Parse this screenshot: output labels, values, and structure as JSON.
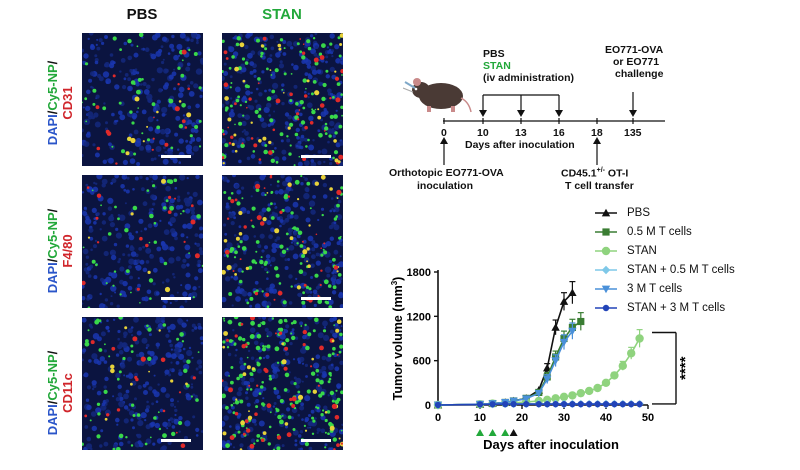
{
  "microscopy": {
    "columns": [
      "PBS",
      "STAN"
    ],
    "column_colors": [
      "#111111",
      "#22a83a"
    ],
    "rows": [
      {
        "dapi": "DAPI",
        "sep1": "/",
        "np": "Cy5-NP",
        "sep2": "/",
        "marker": "CD31"
      },
      {
        "dapi": "DAPI",
        "sep1": "/",
        "np": "Cy5-NP",
        "sep2": "/",
        "marker": "F4/80"
      },
      {
        "dapi": "DAPI",
        "sep1": "/",
        "np": "Cy5-NP",
        "sep2": "/",
        "marker": "CD11c"
      }
    ]
  },
  "scheme": {
    "treatment_line1": "PBS",
    "treatment_line2": "STAN",
    "treatment_line3": "(iv administration)",
    "challenge_line1": "EO771-OVA",
    "challenge_line2": "or EO771",
    "challenge_line3": "challenge",
    "ticks": [
      "0",
      "10",
      "13",
      "16",
      "18",
      "135"
    ],
    "axis_label": "Days after inoculation",
    "inoculation_line1": "Orthotopic EO771-OVA",
    "inoculation_line2": "inoculation",
    "transfer_line1": "CD45.1",
    "transfer_sup": "+/-",
    "transfer_line1b": " OT-I",
    "transfer_line2": "T cell transfer"
  },
  "chart_data": {
    "type": "line",
    "xlabel": "Days after inoculation",
    "ylabel": "Tumor volume (mm",
    "ylabel_sup": "3",
    "ylabel_end": ")",
    "xlim": [
      0,
      50
    ],
    "ylim": [
      0,
      1800
    ],
    "xticks": [
      "0",
      "10",
      "20",
      "30",
      "40",
      "50"
    ],
    "yticks": [
      "0",
      "600",
      "1200",
      "1800"
    ],
    "significance": "****",
    "treatment_days": [
      10,
      13,
      16
    ],
    "transfer_day": 18,
    "series": [
      {
        "name": "PBS",
        "color": "#111111",
        "marker": "triangle",
        "x": [
          0,
          10,
          13,
          16,
          18,
          21,
          24,
          26,
          28,
          30,
          32
        ],
        "y": [
          0,
          10,
          20,
          35,
          55,
          90,
          200,
          500,
          1050,
          1400,
          1520
        ],
        "err": [
          0,
          0,
          0,
          0,
          0,
          0,
          0,
          60,
          100,
          120,
          150
        ]
      },
      {
        "name": "0.5 M T cells",
        "color": "#3a7d33",
        "marker": "square",
        "x": [
          0,
          10,
          13,
          16,
          18,
          21,
          24,
          26,
          28,
          30,
          32,
          34
        ],
        "y": [
          0,
          10,
          20,
          35,
          55,
          90,
          170,
          380,
          650,
          900,
          1050,
          1130
        ],
        "err": [
          0,
          0,
          0,
          0,
          0,
          0,
          30,
          60,
          80,
          100,
          110,
          120
        ]
      },
      {
        "name": "STAN",
        "color": "#8fd37e",
        "marker": "circle",
        "x": [
          0,
          10,
          13,
          16,
          18,
          21,
          24,
          26,
          28,
          30,
          32,
          34,
          36,
          38,
          40,
          42,
          44,
          46,
          48
        ],
        "y": [
          0,
          10,
          20,
          25,
          30,
          40,
          55,
          70,
          90,
          110,
          130,
          160,
          190,
          230,
          300,
          400,
          530,
          700,
          900
        ],
        "err": [
          0,
          0,
          0,
          0,
          0,
          0,
          0,
          0,
          0,
          0,
          0,
          0,
          0,
          0,
          30,
          40,
          60,
          80,
          120
        ]
      },
      {
        "name": "STAN + 0.5 M T cells",
        "color": "#7ec8e8",
        "marker": "diamond",
        "x": [
          0,
          10,
          13,
          16,
          18,
          21,
          24,
          26,
          28,
          30,
          32,
          34,
          36,
          38,
          40,
          42,
          44,
          46,
          48
        ],
        "y": [
          0,
          10,
          12,
          15,
          15,
          15,
          15,
          15,
          15,
          15,
          15,
          15,
          15,
          15,
          15,
          15,
          15,
          15,
          15
        ],
        "err": []
      },
      {
        "name": "3 M T cells",
        "color": "#4a90d9",
        "marker": "triangle-down",
        "x": [
          0,
          10,
          13,
          16,
          18,
          21,
          24,
          26,
          28,
          30,
          32
        ],
        "y": [
          0,
          10,
          20,
          35,
          55,
          85,
          160,
          350,
          600,
          850,
          1000
        ],
        "err": [
          0,
          0,
          0,
          0,
          0,
          0,
          30,
          60,
          80,
          100,
          110
        ]
      },
      {
        "name": "STAN + 3 M T cells",
        "color": "#2244b8",
        "marker": "circle-sm",
        "x": [
          0,
          10,
          13,
          16,
          18,
          21,
          24,
          26,
          28,
          30,
          32,
          34,
          36,
          38,
          40,
          42,
          44,
          46,
          48
        ],
        "y": [
          0,
          8,
          10,
          12,
          12,
          12,
          12,
          12,
          12,
          12,
          12,
          12,
          12,
          12,
          12,
          12,
          12,
          12,
          12
        ],
        "err": []
      }
    ]
  }
}
